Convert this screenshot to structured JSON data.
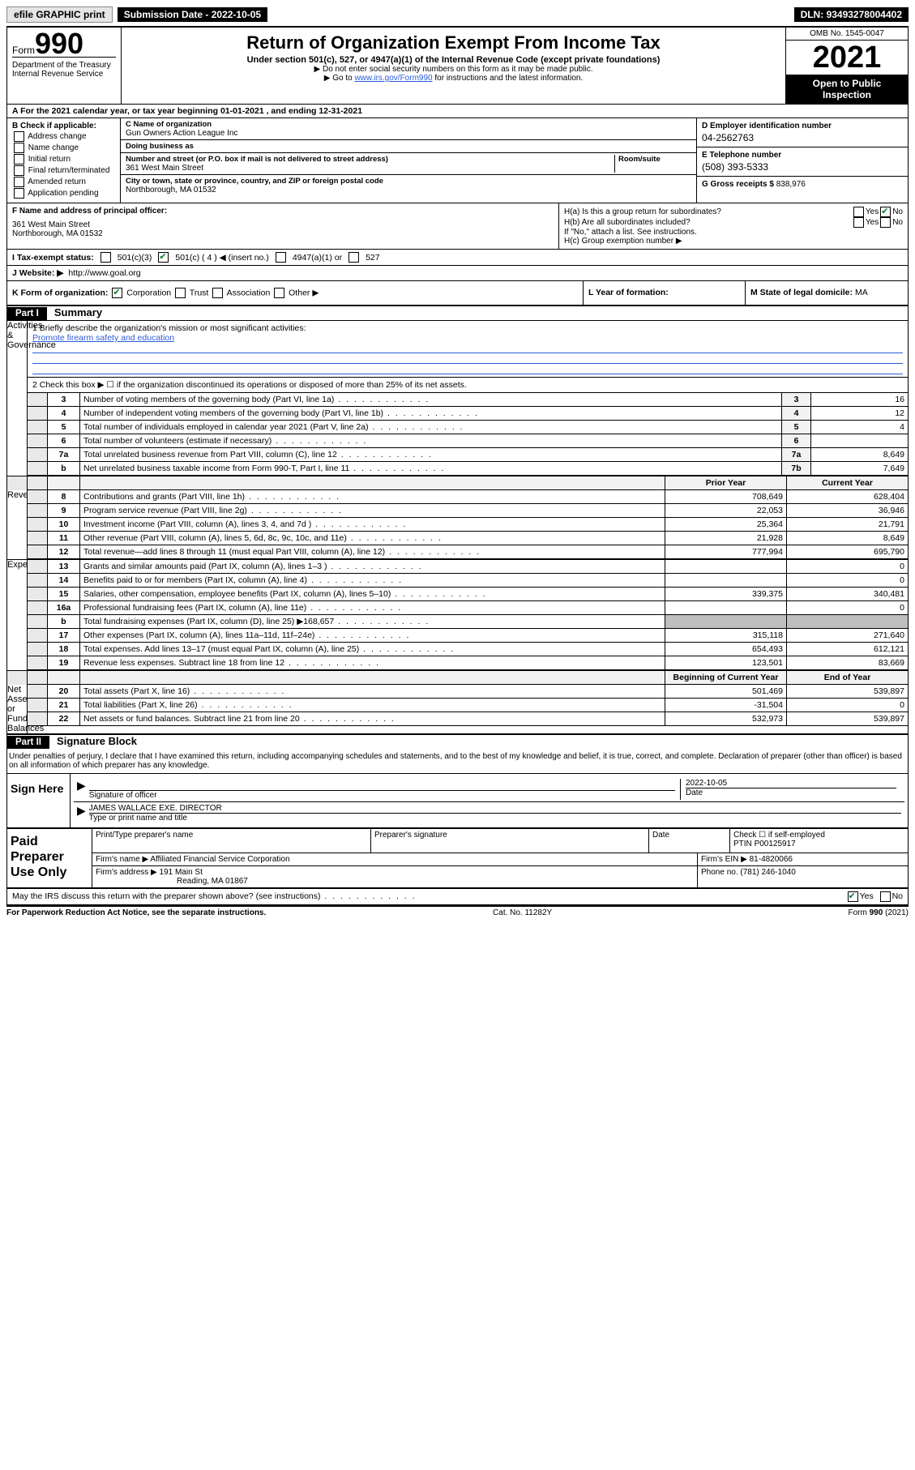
{
  "topbar": {
    "efile": "efile GRAPHIC print",
    "submission_label": "Submission Date - ",
    "submission_date": "2022-10-05",
    "dln_label": "DLN: ",
    "dln": "93493278004402"
  },
  "header": {
    "form_word": "Form",
    "form_num": "990",
    "dept": "Department of the Treasury\nInternal Revenue Service",
    "title": "Return of Organization Exempt From Income Tax",
    "subtitle": "Under section 501(c), 527, or 4947(a)(1) of the Internal Revenue Code (except private foundations)",
    "note1": "▶ Do not enter social security numbers on this form as it may be made public.",
    "note2_pre": "▶ Go to ",
    "note2_link": "www.irs.gov/Form990",
    "note2_post": " for instructions and the latest information.",
    "omb": "OMB No. 1545-0047",
    "year": "2021",
    "openbox": "Open to Public Inspection"
  },
  "row_a": "A For the 2021 calendar year, or tax year beginning 01-01-2021   , and ending 12-31-2021",
  "col_b": {
    "title": "B Check if applicable:",
    "opts": [
      "Address change",
      "Name change",
      "Initial return",
      "Final return/terminated",
      "Amended return",
      "Application pending"
    ]
  },
  "col_c": {
    "name_lab": "C Name of organization",
    "name": "Gun Owners Action League Inc",
    "dba_lab": "Doing business as",
    "dba": "",
    "addr_lab": "Number and street (or P.O. box if mail is not delivered to street address)",
    "room_lab": "Room/suite",
    "addr": "361 West Main Street",
    "city_lab": "City or town, state or province, country, and ZIP or foreign postal code",
    "city": "Northborough, MA  01532"
  },
  "col_d": {
    "d_lab": "D Employer identification number",
    "d_val": "04-2562763",
    "e_lab": "E Telephone number",
    "e_val": "(508) 393-5333",
    "g_lab": "G Gross receipts $ ",
    "g_val": "838,976"
  },
  "row_f": {
    "f_lab": "F  Name and address of principal officer:",
    "f_addr1": "361 West Main Street",
    "f_addr2": "Northborough, MA  01532",
    "ha": "H(a)  Is this a group return for subordinates?",
    "hb": "H(b)  Are all subordinates included?",
    "hb_note": "If \"No,\" attach a list. See instructions.",
    "hc": "H(c)  Group exemption number ▶",
    "yes": "Yes",
    "no": "No",
    "ha_checked": "no"
  },
  "row_i": {
    "lab": "I   Tax-exempt status:",
    "c3": "501(c)(3)",
    "c4": "501(c) ( 4 ) ◀ (insert no.)",
    "c4947": "4947(a)(1) or",
    "c527": "527",
    "checked": "c4"
  },
  "row_j": {
    "lab": "J   Website: ▶ ",
    "val": "http://www.goal.org"
  },
  "row_k": {
    "k_lab": "K Form of organization:",
    "k_opts": [
      "Corporation",
      "Trust",
      "Association",
      "Other ▶"
    ],
    "k_checked": 0,
    "l": "L Year of formation:",
    "m_lab": "M State of legal domicile: ",
    "m_val": "MA"
  },
  "part1": {
    "bar": "Part I",
    "title": "Summary",
    "q1_lab": "1   Briefly describe the organization's mission or most significant activities:",
    "q1_val": "Promote firearm safety and education",
    "q2": "2   Check this box ▶ ☐  if the organization discontinued its operations or disposed of more than 25% of its net assets.",
    "side_ag": "Activities & Governance",
    "side_rev": "Revenue",
    "side_exp": "Expenses",
    "side_na": "Net Assets or Fund Balances",
    "lines_num": [
      {
        "n": "3",
        "t": "Number of voting members of the governing body (Part VI, line 1a)",
        "box": "3",
        "v": "16"
      },
      {
        "n": "4",
        "t": "Number of independent voting members of the governing body (Part VI, line 1b)",
        "box": "4",
        "v": "12"
      },
      {
        "n": "5",
        "t": "Total number of individuals employed in calendar year 2021 (Part V, line 2a)",
        "box": "5",
        "v": "4"
      },
      {
        "n": "6",
        "t": "Total number of volunteers (estimate if necessary)",
        "box": "6",
        "v": ""
      },
      {
        "n": "7a",
        "t": "Total unrelated business revenue from Part VIII, column (C), line 12",
        "box": "7a",
        "v": "8,649"
      },
      {
        "n": "b",
        "t": "Net unrelated business taxable income from Form 990-T, Part I, line 11",
        "box": "7b",
        "v": "7,649"
      }
    ],
    "hdr_prior": "Prior Year",
    "hdr_curr": "Current Year",
    "rev": [
      {
        "n": "8",
        "t": "Contributions and grants (Part VIII, line 1h)",
        "p": "708,649",
        "c": "628,404"
      },
      {
        "n": "9",
        "t": "Program service revenue (Part VIII, line 2g)",
        "p": "22,053",
        "c": "36,946"
      },
      {
        "n": "10",
        "t": "Investment income (Part VIII, column (A), lines 3, 4, and 7d )",
        "p": "25,364",
        "c": "21,791"
      },
      {
        "n": "11",
        "t": "Other revenue (Part VIII, column (A), lines 5, 6d, 8c, 9c, 10c, and 11e)",
        "p": "21,928",
        "c": "8,649"
      },
      {
        "n": "12",
        "t": "Total revenue—add lines 8 through 11 (must equal Part VIII, column (A), line 12)",
        "p": "777,994",
        "c": "695,790"
      }
    ],
    "exp": [
      {
        "n": "13",
        "t": "Grants and similar amounts paid (Part IX, column (A), lines 1–3 )",
        "p": "",
        "c": "0"
      },
      {
        "n": "14",
        "t": "Benefits paid to or for members (Part IX, column (A), line 4)",
        "p": "",
        "c": "0"
      },
      {
        "n": "15",
        "t": "Salaries, other compensation, employee benefits (Part IX, column (A), lines 5–10)",
        "p": "339,375",
        "c": "340,481"
      },
      {
        "n": "16a",
        "t": "Professional fundraising fees (Part IX, column (A), line 11e)",
        "p": "",
        "c": "0"
      },
      {
        "n": "b",
        "t": "Total fundraising expenses (Part IX, column (D), line 25) ▶168,657",
        "p": "shade",
        "c": "shade"
      },
      {
        "n": "17",
        "t": "Other expenses (Part IX, column (A), lines 11a–11d, 11f–24e)",
        "p": "315,118",
        "c": "271,640"
      },
      {
        "n": "18",
        "t": "Total expenses. Add lines 13–17 (must equal Part IX, column (A), line 25)",
        "p": "654,493",
        "c": "612,121"
      },
      {
        "n": "19",
        "t": "Revenue less expenses. Subtract line 18 from line 12",
        "p": "123,501",
        "c": "83,669"
      }
    ],
    "hdr_boy": "Beginning of Current Year",
    "hdr_eoy": "End of Year",
    "na": [
      {
        "n": "20",
        "t": "Total assets (Part X, line 16)",
        "p": "501,469",
        "c": "539,897"
      },
      {
        "n": "21",
        "t": "Total liabilities (Part X, line 26)",
        "p": "-31,504",
        "c": "0"
      },
      {
        "n": "22",
        "t": "Net assets or fund balances. Subtract line 21 from line 20",
        "p": "532,973",
        "c": "539,897"
      }
    ]
  },
  "part2": {
    "bar": "Part II",
    "title": "Signature Block",
    "decl": "Under penalties of perjury, I declare that I have examined this return, including accompanying schedules and statements, and to the best of my knowledge and belief, it is true, correct, and complete. Declaration of preparer (other than officer) is based on all information of which preparer has any knowledge.",
    "sign_here": "Sign Here",
    "sig_of_officer": "Signature of officer",
    "sig_date_lab": "Date",
    "sig_date": "2022-10-05",
    "name_title": "JAMES WALLACE  EXE. DIRECTOR",
    "name_title_lab": "Type or print name and title",
    "paid_lab": "Paid Preparer Use Only",
    "pp_name_lab": "Print/Type preparer's name",
    "pp_sig_lab": "Preparer's signature",
    "pp_date_lab": "Date",
    "pp_self_lab": "Check ☐ if self-employed",
    "ptin_lab": "PTIN",
    "ptin": "P00125917",
    "firm_name_lab": "Firm's name   ▶ ",
    "firm_name": "Affiliated Financial Service Corporation",
    "firm_ein_lab": "Firm's EIN ▶ ",
    "firm_ein": "81-4820066",
    "firm_addr_lab": "Firm's address ▶ ",
    "firm_addr1": "191 Main St",
    "firm_addr2": "Reading, MA  01867",
    "phone_lab": "Phone no. ",
    "phone": "(781) 246-1040",
    "discuss": "May the IRS discuss this return with the preparer shown above? (see instructions)",
    "discuss_yes": "Yes",
    "discuss_no": "No"
  },
  "footer": {
    "l": "For Paperwork Reduction Act Notice, see the separate instructions.",
    "c": "Cat. No. 11282Y",
    "r": "Form 990 (2021)"
  },
  "colors": {
    "link": "#2b5cd9",
    "check": "#0a7c2f",
    "shade": "#bfbfbf"
  }
}
